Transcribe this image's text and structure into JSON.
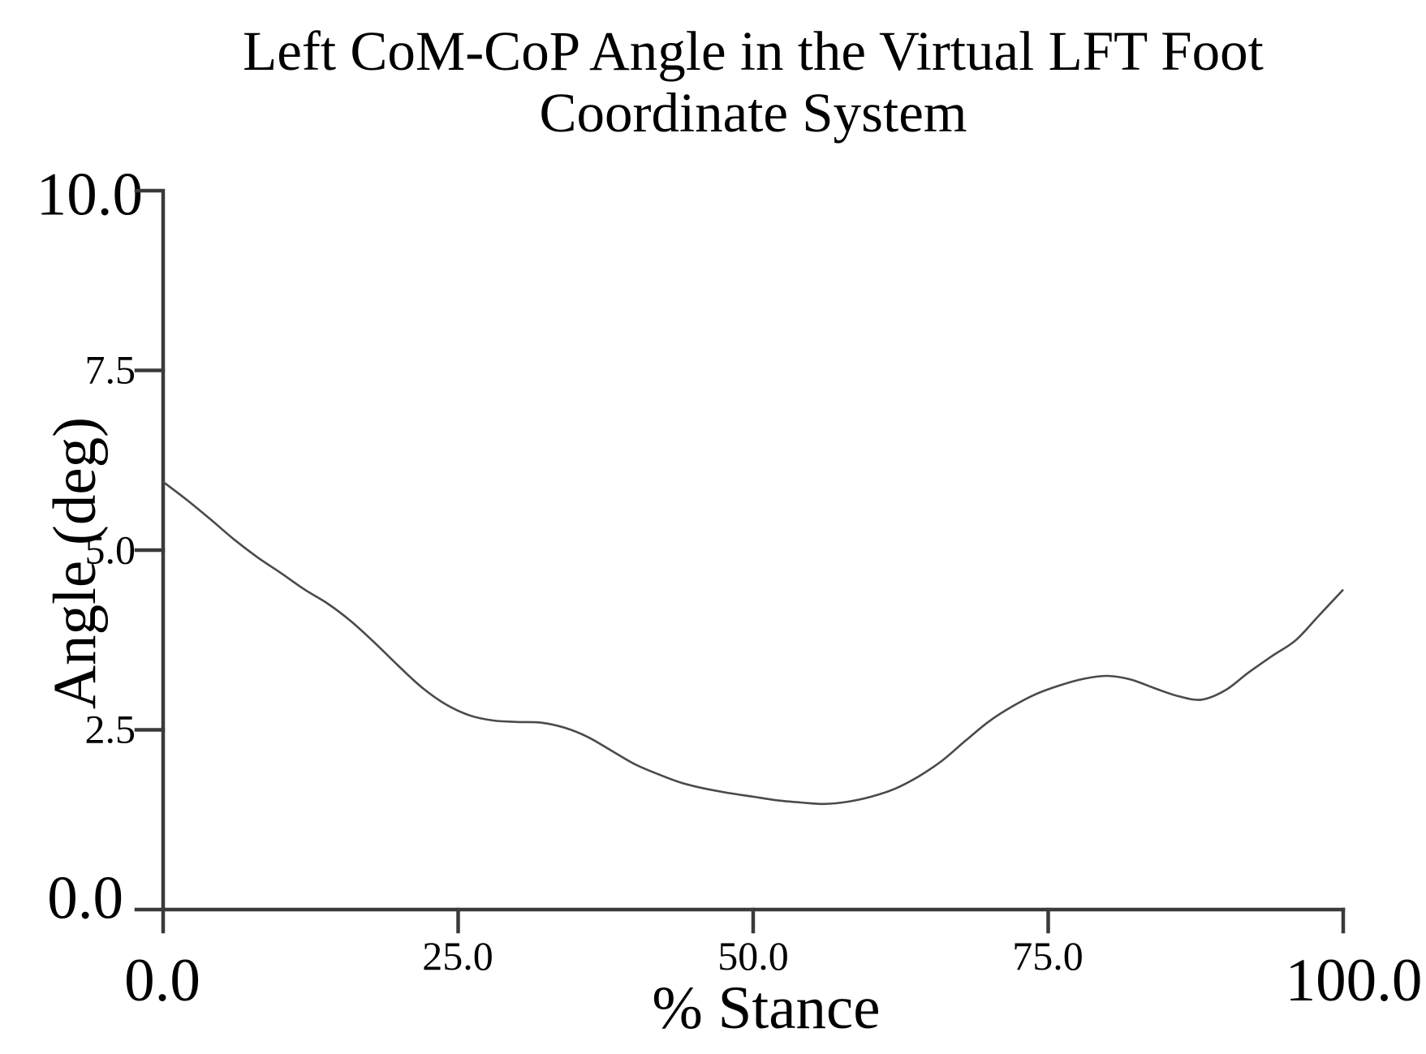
{
  "page": {
    "background": "#ffffff"
  },
  "chart_data": {
    "type": "line",
    "title": "Left CoM-CoP Angle in the Virtual LFT Foot Coordinate System",
    "title_lines": [
      "Left CoM-CoP Angle in the Virtual LFT Foot",
      "Coordinate System"
    ],
    "xlabel": "% Stance",
    "ylabel": "Angle (deg)",
    "xlim": [
      0.0,
      100.0
    ],
    "ylim": [
      0.0,
      10.0
    ],
    "x_ticks": [
      0.0,
      25.0,
      50.0,
      75.0,
      100.0
    ],
    "x_tick_labels": [
      "0.0",
      "25.0",
      "50.0",
      "75.0",
      "100.0"
    ],
    "y_ticks": [
      0.0,
      2.5,
      5.0,
      7.5,
      10.0
    ],
    "y_tick_labels_top_to_bottom": [
      "10.0",
      "7.5",
      "5.0",
      "2.5",
      "0.0"
    ],
    "grid": false,
    "legend": false,
    "axis_color": "#3a3a3a",
    "line_color": "#4a4a4a",
    "series": [
      {
        "x": [
          0,
          2,
          4,
          6,
          8,
          10,
          12,
          14,
          16,
          18,
          20,
          22,
          24,
          26,
          28,
          30,
          32,
          34,
          36,
          38,
          40,
          42,
          44,
          46,
          48,
          50,
          52,
          54,
          56,
          58,
          60,
          62,
          64,
          66,
          68,
          70,
          72,
          74,
          76,
          78,
          80,
          82,
          84,
          86,
          88,
          90,
          92,
          94,
          96,
          98,
          100
        ],
        "y": [
          5.95,
          5.7,
          5.43,
          5.15,
          4.9,
          4.68,
          4.45,
          4.25,
          4.0,
          3.7,
          3.38,
          3.08,
          2.85,
          2.7,
          2.63,
          2.61,
          2.6,
          2.53,
          2.4,
          2.21,
          2.02,
          1.88,
          1.76,
          1.68,
          1.62,
          1.57,
          1.52,
          1.49,
          1.47,
          1.5,
          1.57,
          1.68,
          1.85,
          2.07,
          2.35,
          2.62,
          2.83,
          3.0,
          3.12,
          3.21,
          3.25,
          3.2,
          3.08,
          2.97,
          2.92,
          3.05,
          3.3,
          3.53,
          3.75,
          4.1,
          4.45
        ]
      }
    ]
  }
}
